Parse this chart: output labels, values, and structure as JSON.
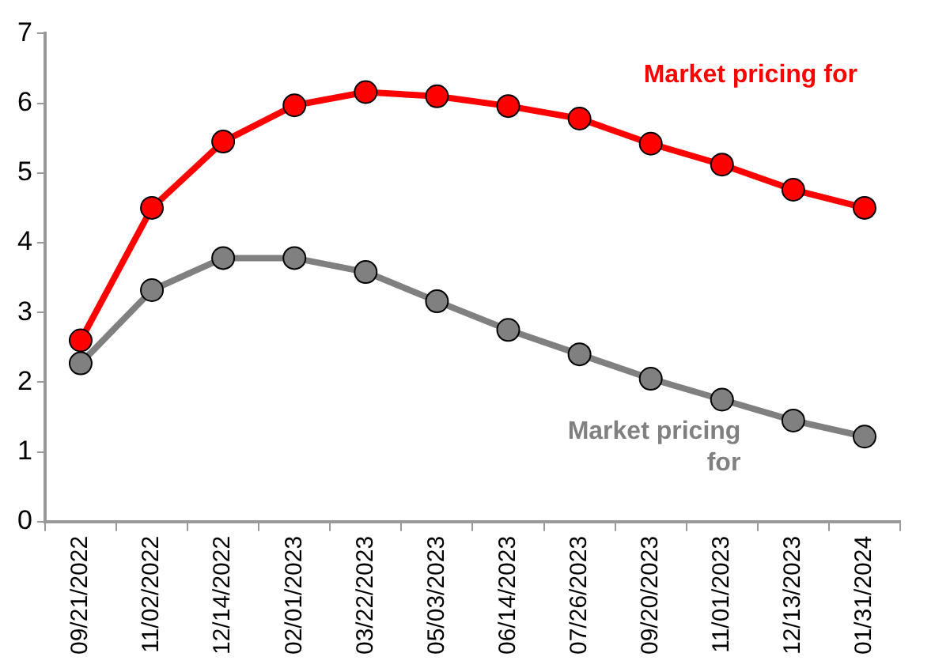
{
  "chart_data": {
    "type": "line",
    "categories": [
      "09/21/2022",
      "11/02/2022",
      "12/14/2022",
      "02/01/2023",
      "03/22/2023",
      "05/03/2023",
      "06/14/2023",
      "07/26/2023",
      "09/20/2023",
      "11/01/2023",
      "12/13/2023",
      "01/31/2024"
    ],
    "series": [
      {
        "name": "Market pricing for",
        "color": "#ff0000",
        "values": [
          2.6,
          4.5,
          5.45,
          5.97,
          6.16,
          6.1,
          5.96,
          5.78,
          5.42,
          5.12,
          4.76,
          4.5
        ]
      },
      {
        "name": "Market pricing for",
        "color": "#808080",
        "values": [
          2.27,
          3.32,
          3.78,
          3.78,
          3.58,
          3.16,
          2.75,
          2.4,
          2.05,
          1.75,
          1.45,
          1.22
        ]
      }
    ],
    "ylim": [
      0,
      7
    ],
    "yticks": [
      0,
      1,
      2,
      3,
      4,
      5,
      6,
      7
    ],
    "grid": false,
    "legend": false,
    "marker": "circle",
    "line_style": "solid"
  }
}
